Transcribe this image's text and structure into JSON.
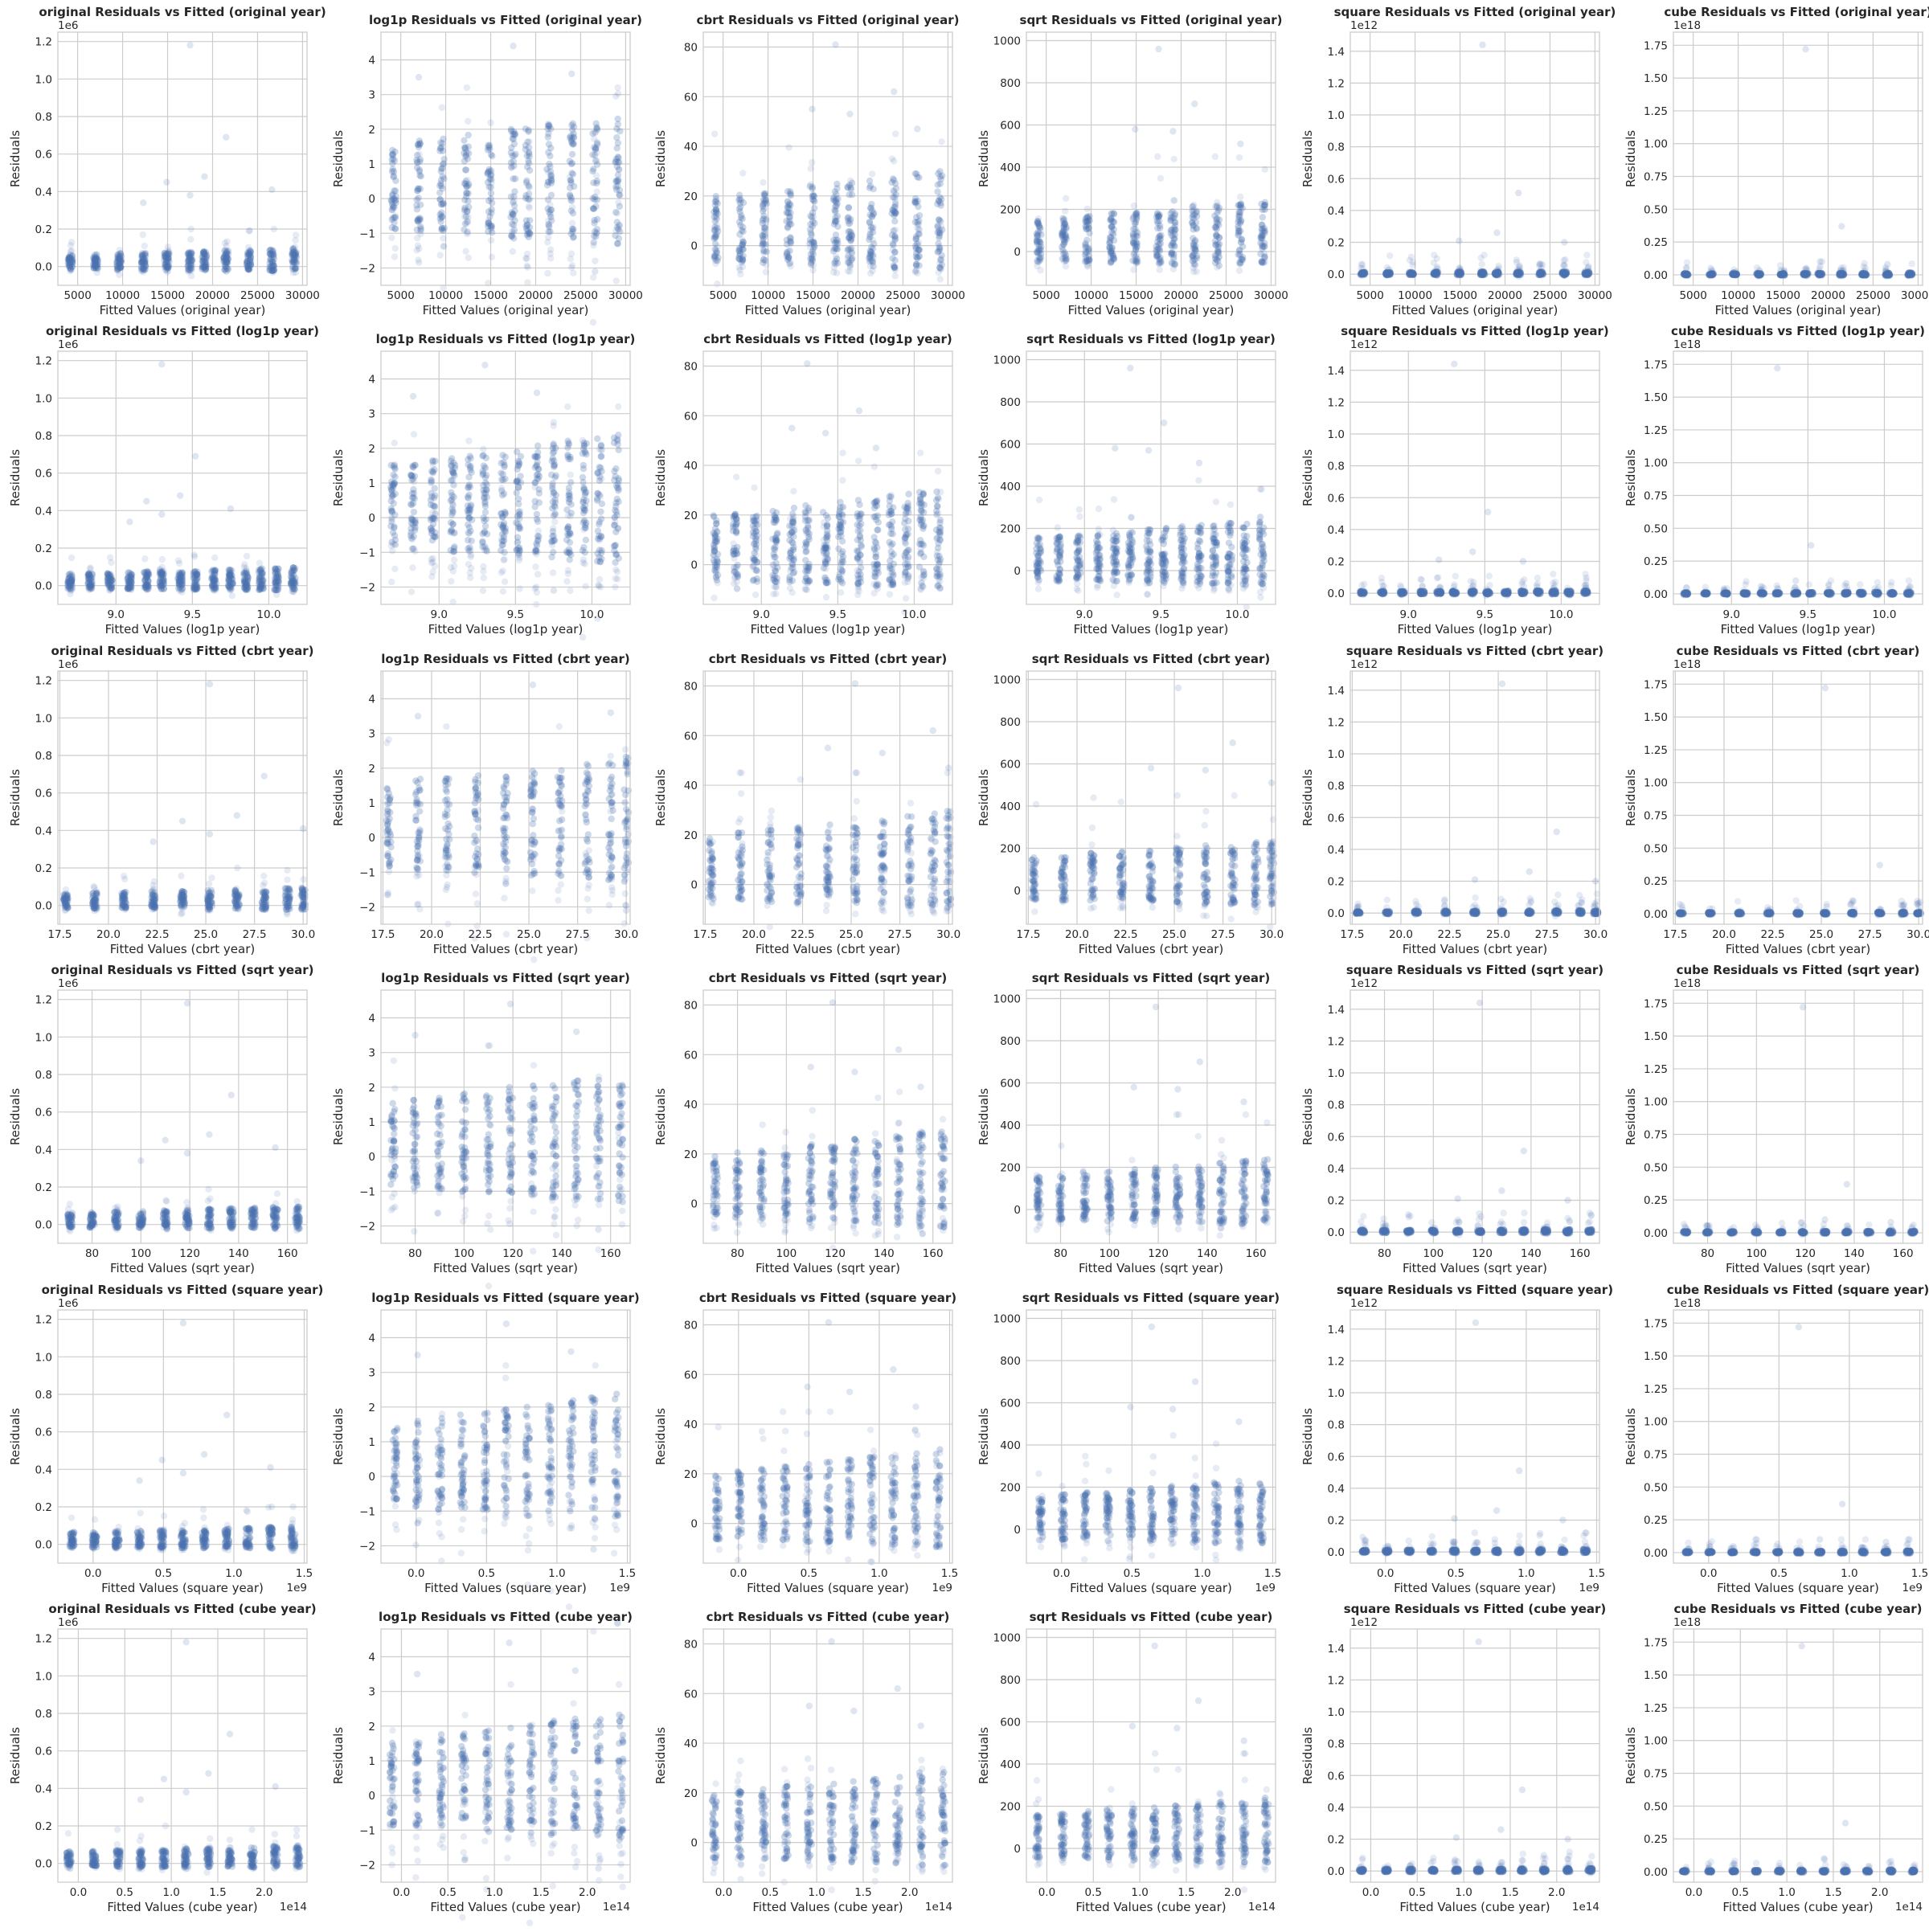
{
  "figure": {
    "y_label": "Residuals",
    "title_template": "{t} Residuals vs Fitted ({m} year)",
    "xlabel_template": "Fitted Values ({m} year)",
    "colors": {
      "points": "#4c72b0",
      "grid": "#cccccc",
      "spine": "#cccccc",
      "text": "#262626",
      "background": "#ffffff"
    },
    "x_models": [
      "original",
      "log1p",
      "cbrt",
      "sqrt",
      "square",
      "cube"
    ]
  },
  "chart_data": [
    {
      "type": "scatter",
      "target": "original",
      "ylim": [
        -0.1,
        1.25
      ],
      "yticks": [
        0,
        0.2,
        0.4,
        0.6,
        0.8,
        1.0,
        1.2
      ],
      "ytick_labels": [
        "0.0",
        "0.2",
        "0.4",
        "0.6",
        "0.8",
        "1.0",
        "1.2"
      ],
      "y_offset_label": "1e6",
      "x_groups": [
        6,
        10
      ],
      "band": {
        "core_lo": -0.02,
        "core_hi": 0.08,
        "spread_lo": -0.03,
        "spread_hi": 0.2
      },
      "outliers": [
        {
          "g": 5,
          "y": 1.18
        },
        {
          "g": 7,
          "y": 0.69
        },
        {
          "g": 4,
          "y": 0.45
        },
        {
          "g": 6,
          "y": 0.48
        },
        {
          "g": 9,
          "y": 0.41
        },
        {
          "g": 5,
          "y": 0.38
        },
        {
          "g": 3,
          "y": 0.34
        }
      ]
    },
    {
      "type": "scatter",
      "target": "log1p",
      "ylim": [
        -2.5,
        4.8
      ],
      "yticks": [
        -2,
        -1,
        0,
        1,
        2,
        3,
        4
      ],
      "ytick_labels": [
        "−2",
        "−1",
        "0",
        "1",
        "2",
        "3",
        "4"
      ],
      "y_offset_label": "",
      "x_groups": [
        6,
        10
      ],
      "band": {
        "core_lo": -1.1,
        "core_hi": 2.0,
        "spread_lo": -2.0,
        "spread_hi": 3.2
      },
      "outliers": [
        {
          "g": 5,
          "y": 4.4
        },
        {
          "g": 8,
          "y": 3.6
        },
        {
          "g": 9,
          "y": -2.1
        },
        {
          "g": 1,
          "y": 3.5
        }
      ]
    },
    {
      "type": "scatter",
      "target": "cbrt",
      "ylim": [
        -16,
        86
      ],
      "yticks": [
        0,
        20,
        40,
        60,
        80
      ],
      "ytick_labels": [
        "0",
        "20",
        "40",
        "60",
        "80"
      ],
      "y_offset_label": "",
      "x_groups": [
        6,
        10
      ],
      "band": {
        "core_lo": -8,
        "core_hi": 25,
        "spread_lo": -12,
        "spread_hi": 45
      },
      "outliers": [
        {
          "g": 5,
          "y": 81
        },
        {
          "g": 8,
          "y": 62
        },
        {
          "g": 4,
          "y": 55
        },
        {
          "g": 6,
          "y": 53
        },
        {
          "g": 9,
          "y": 47
        }
      ]
    },
    {
      "type": "scatter",
      "target": "sqrt",
      "ylim": [
        -160,
        1040
      ],
      "yticks": [
        0,
        200,
        400,
        600,
        800,
        1000
      ],
      "ytick_labels": [
        "0",
        "200",
        "400",
        "600",
        "800",
        "1000"
      ],
      "y_offset_label": "",
      "x_groups": [
        6,
        10
      ],
      "band": {
        "core_lo": -60,
        "core_hi": 200,
        "spread_lo": -90,
        "spread_hi": 450
      },
      "outliers": [
        {
          "g": 5,
          "y": 960
        },
        {
          "g": 7,
          "y": 700
        },
        {
          "g": 4,
          "y": 580
        },
        {
          "g": 6,
          "y": 570
        },
        {
          "g": 9,
          "y": 510
        }
      ]
    },
    {
      "type": "scatter",
      "target": "square",
      "ylim": [
        -0.07,
        1.52
      ],
      "yticks": [
        0,
        0.2,
        0.4,
        0.6,
        0.8,
        1.0,
        1.2,
        1.4
      ],
      "ytick_labels": [
        "0.0",
        "0.2",
        "0.4",
        "0.6",
        "0.8",
        "1.0",
        "1.2",
        "1.4"
      ],
      "y_offset_label": "1e12",
      "x_groups": [
        8,
        10
      ],
      "band": {
        "core_lo": -0.005,
        "core_hi": 0.015,
        "spread_lo": -0.01,
        "spread_hi": 0.12
      },
      "outliers": [
        {
          "g": 5,
          "y": 1.44
        },
        {
          "g": 7,
          "y": 0.51
        },
        {
          "g": 9,
          "y": 0.2
        },
        {
          "g": 4,
          "y": 0.21
        },
        {
          "g": 6,
          "y": 0.26
        }
      ]
    },
    {
      "type": "scatter",
      "target": "cube",
      "ylim": [
        -0.08,
        1.85
      ],
      "yticks": [
        0,
        0.25,
        0.5,
        0.75,
        1.0,
        1.25,
        1.5,
        1.75
      ],
      "ytick_labels": [
        "0.00",
        "0.25",
        "0.50",
        "0.75",
        "1.00",
        "1.25",
        "1.50",
        "1.75"
      ],
      "y_offset_label": "1e18",
      "x_groups": [
        9,
        10
      ],
      "band": {
        "core_lo": -0.004,
        "core_hi": 0.012,
        "spread_lo": -0.01,
        "spread_hi": 0.1
      },
      "outliers": [
        {
          "g": 5,
          "y": 1.72
        },
        {
          "g": 7,
          "y": 0.37
        },
        {
          "g": 9,
          "y": 0.08
        },
        {
          "g": 6,
          "y": 0.1
        }
      ]
    }
  ],
  "x_axes": [
    {
      "xlim": [
        2800,
        30500
      ],
      "xticks": [
        5000,
        10000,
        15000,
        20000,
        25000,
        30000
      ],
      "xtick_labels": [
        "5000",
        "10000",
        "15000",
        "20000",
        "25000",
        "30000"
      ],
      "x_offset_label": "",
      "x_groups": [
        4200,
        7000,
        9600,
        12300,
        14900,
        17500,
        19100,
        21500,
        24000,
        26600,
        29100
      ]
    },
    {
      "xlim": [
        8.62,
        10.25
      ],
      "xticks": [
        9.0,
        9.5,
        10.0
      ],
      "xtick_labels": [
        "9.0",
        "9.5",
        "10.0"
      ],
      "x_offset_label": "",
      "x_groups": [
        8.7,
        8.83,
        8.96,
        9.09,
        9.2,
        9.3,
        9.42,
        9.52,
        9.64,
        9.75,
        9.85,
        9.95,
        10.05,
        10.16
      ]
    },
    {
      "xlim": [
        17.4,
        30.2
      ],
      "xticks": [
        17.5,
        20.0,
        22.5,
        25.0,
        27.5,
        30.0
      ],
      "xtick_labels": [
        "17.5",
        "20.0",
        "22.5",
        "25.0",
        "27.5",
        "30.0"
      ],
      "x_offset_label": "",
      "x_groups": [
        17.8,
        19.3,
        20.8,
        22.3,
        23.8,
        25.2,
        26.6,
        28.0,
        29.2,
        30.0
      ]
    },
    {
      "xlim": [
        66,
        168
      ],
      "xticks": [
        80,
        100,
        120,
        140,
        160
      ],
      "xtick_labels": [
        "80",
        "100",
        "120",
        "140",
        "160"
      ],
      "x_offset_label": "",
      "x_groups": [
        71,
        80,
        90,
        100,
        110,
        119,
        128,
        137,
        146,
        155,
        164
      ]
    },
    {
      "xlim": [
        -0.25,
        1.52
      ],
      "xticks": [
        0.0,
        0.5,
        1.0,
        1.5
      ],
      "xtick_labels": [
        "0.0",
        "0.5",
        "1.0",
        "1.5"
      ],
      "x_offset_label": "1e9",
      "x_groups": [
        -0.15,
        0.01,
        0.17,
        0.33,
        0.49,
        0.64,
        0.79,
        0.95,
        1.1,
        1.26,
        1.42
      ]
    },
    {
      "xlim": [
        -0.22,
        2.46
      ],
      "xticks": [
        0.0,
        0.5,
        1.0,
        1.5,
        2.0
      ],
      "xtick_labels": [
        "0.0",
        "0.5",
        "1.0",
        "1.5",
        "2.0"
      ],
      "x_offset_label": "1e14",
      "x_groups": [
        -0.1,
        0.17,
        0.43,
        0.67,
        0.92,
        1.16,
        1.4,
        1.63,
        1.87,
        2.12,
        2.36
      ]
    }
  ]
}
